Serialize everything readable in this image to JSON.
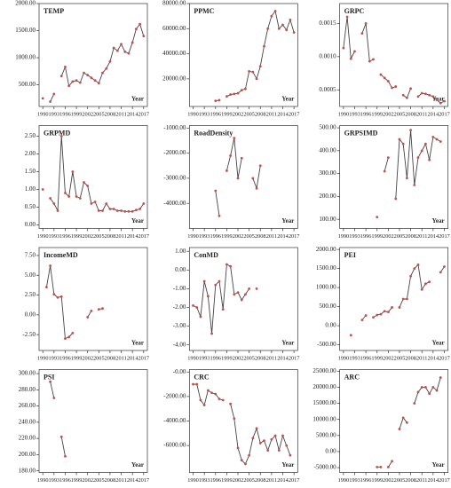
{
  "chart_data": [
    {
      "type": "line",
      "title": "TEMP",
      "x_label": "Year",
      "color": "#444",
      "marker_color": "#c0504d",
      "x": [
        1990,
        1991,
        1992,
        1993,
        1994,
        1995,
        1996,
        1997,
        1998,
        1999,
        2000,
        2001,
        2002,
        2003,
        2004,
        2005,
        2006,
        2007,
        2008,
        2009,
        2010,
        2011,
        2012,
        2013,
        2014,
        2015,
        2016,
        2017
      ],
      "xlim": [
        1989,
        2018
      ],
      "xticks": [
        1990,
        1993,
        1996,
        1999,
        2002,
        2005,
        2008,
        2011,
        2014,
        2017
      ],
      "ylim": [
        100,
        2000
      ],
      "yticks": [
        {
          "value": 500,
          "label": "500.00"
        },
        {
          "value": 1000,
          "label": "1000.00"
        },
        {
          "value": 1500,
          "label": "1500.00"
        },
        {
          "value": 2000,
          "label": "2000.00"
        }
      ],
      "values": [
        250,
        null,
        190,
        330,
        null,
        660,
        830,
        480,
        560,
        580,
        540,
        720,
        680,
        630,
        580,
        530,
        720,
        800,
        930,
        1180,
        1130,
        1250,
        1110,
        1080,
        1280,
        1530,
        1620,
        1400
      ]
    },
    {
      "type": "line",
      "title": "PPMC",
      "x_label": "Year",
      "color": "#444",
      "marker_color": "#c0504d",
      "x": [
        1990,
        1991,
        1992,
        1993,
        1994,
        1995,
        1996,
        1997,
        1998,
        1999,
        2000,
        2001,
        2002,
        2003,
        2004,
        2005,
        2006,
        2007,
        2008,
        2009,
        2010,
        2011,
        2012,
        2013,
        2014,
        2015,
        2016,
        2017
      ],
      "xlim": [
        1989,
        2018
      ],
      "xticks": [
        1990,
        1993,
        1996,
        1999,
        2002,
        2005,
        2008,
        2011,
        2014,
        2017
      ],
      "ylim": [
        -2000,
        80000
      ],
      "yticks": [
        {
          "value": 20000,
          "label": "20000.00"
        },
        {
          "value": 40000,
          "label": "40000.00"
        },
        {
          "value": 60000,
          "label": "60000.00"
        },
        {
          "value": 80000,
          "label": "80000.00"
        }
      ],
      "values": [
        null,
        null,
        null,
        null,
        null,
        null,
        2500,
        3000,
        null,
        6000,
        7500,
        8000,
        8500,
        11000,
        12000,
        26000,
        25500,
        20000,
        30000,
        46000,
        60000,
        70000,
        74000,
        60000,
        63000,
        59000,
        67000,
        57000
      ]
    },
    {
      "type": "line",
      "title": "GRPC",
      "x_label": "Year",
      "color": "#444",
      "marker_color": "#c0504d",
      "x": [
        1990,
        1991,
        1992,
        1993,
        1994,
        1995,
        1996,
        1997,
        1998,
        1999,
        2000,
        2001,
        2002,
        2003,
        2004,
        2005,
        2006,
        2007,
        2008,
        2009,
        2010,
        2011,
        2012,
        2013,
        2014,
        2015,
        2016,
        2017
      ],
      "xlim": [
        1989,
        2018
      ],
      "xticks": [
        1990,
        1993,
        1996,
        1999,
        2002,
        2005,
        2008,
        2011,
        2014,
        2017
      ],
      "ylim": [
        0.00025,
        0.0018
      ],
      "yticks": [
        {
          "value": 0.0005,
          "label": "0.0005"
        },
        {
          "value": 0.001,
          "label": "0.0010"
        },
        {
          "value": 0.0015,
          "label": "0.0015"
        }
      ],
      "values": [
        0.00113,
        0.0016,
        0.00097,
        0.00108,
        null,
        0.00135,
        0.0015,
        0.00093,
        0.00096,
        null,
        0.00073,
        0.00068,
        0.00063,
        0.00053,
        0.00055,
        null,
        0.00042,
        0.00038,
        0.00052,
        null,
        0.0004,
        0.00045,
        0.00044,
        0.00042,
        0.0004,
        0.00035,
        0.0003,
        0.00033
      ]
    },
    {
      "type": "line",
      "title": "GRPMD",
      "x_label": "Year",
      "color": "#444",
      "marker_color": "#c0504d",
      "x": [
        1990,
        1991,
        1992,
        1993,
        1994,
        1995,
        1996,
        1997,
        1998,
        1999,
        2000,
        2001,
        2002,
        2003,
        2004,
        2005,
        2006,
        2007,
        2008,
        2009,
        2010,
        2011,
        2012,
        2013,
        2014,
        2015,
        2016,
        2017
      ],
      "xlim": [
        1989,
        2018
      ],
      "xticks": [
        1990,
        1993,
        1996,
        1999,
        2002,
        2005,
        2008,
        2011,
        2014,
        2017
      ],
      "ylim": [
        -0.1,
        2.8
      ],
      "yticks": [
        {
          "value": 0,
          "label": "0.00"
        },
        {
          "value": 0.5,
          "label": "0.50"
        },
        {
          "value": 1,
          "label": "1.00"
        },
        {
          "value": 1.5,
          "label": "1.50"
        },
        {
          "value": 2,
          "label": "2.00"
        },
        {
          "value": 2.5,
          "label": "2.50"
        }
      ],
      "values": [
        1.0,
        null,
        0.75,
        0.6,
        0.4,
        2.5,
        0.9,
        0.8,
        1.5,
        0.8,
        0.75,
        1.2,
        1.1,
        0.6,
        0.65,
        0.4,
        0.4,
        0.6,
        0.45,
        0.45,
        0.4,
        0.4,
        0.38,
        0.38,
        0.38,
        0.42,
        0.45,
        0.6
      ]
    },
    {
      "type": "line",
      "title": "RoadDensity",
      "x_label": "Year",
      "color": "#444",
      "marker_color": "#c0504d",
      "x": [
        1990,
        1991,
        1992,
        1993,
        1994,
        1995,
        1996,
        1997,
        1998,
        1999,
        2000,
        2001,
        2002,
        2003,
        2004,
        2005,
        2006,
        2007,
        2008,
        2009,
        2010,
        2011,
        2012,
        2013,
        2014,
        2015,
        2016,
        2017
      ],
      "xlim": [
        1989,
        2018
      ],
      "xticks": [
        1990,
        1993,
        1996,
        1999,
        2002,
        2005,
        2008,
        2011,
        2014,
        2017
      ],
      "ylim": [
        -5000,
        -900
      ],
      "yticks": [
        {
          "value": -4000,
          "label": "-4000.00"
        },
        {
          "value": -3000,
          "label": "-3000.00"
        },
        {
          "value": -2000,
          "label": "-2000.00"
        },
        {
          "value": -1000,
          "label": "-1000.00"
        }
      ],
      "values": [
        null,
        null,
        null,
        null,
        null,
        null,
        -3500,
        -4500,
        null,
        -2700,
        -2100,
        -1400,
        -3000,
        -2200,
        null,
        null,
        -3000,
        -3400,
        -2500,
        null,
        null,
        null,
        null,
        null,
        null,
        null,
        null,
        null
      ]
    },
    {
      "type": "line",
      "title": "GRPSIMD",
      "x_label": "Year",
      "color": "#444",
      "marker_color": "#c0504d",
      "x": [
        1990,
        1991,
        1992,
        1993,
        1994,
        1995,
        1996,
        1997,
        1998,
        1999,
        2000,
        2001,
        2002,
        2003,
        2004,
        2005,
        2006,
        2007,
        2008,
        2009,
        2010,
        2011,
        2012,
        2013,
        2014,
        2015,
        2016,
        2017
      ],
      "xlim": [
        1989,
        2018
      ],
      "xticks": [
        1990,
        1993,
        1996,
        1999,
        2002,
        2005,
        2008,
        2011,
        2014,
        2017
      ],
      "ylim": [
        60,
        510
      ],
      "yticks": [
        {
          "value": 100,
          "label": "100.00"
        },
        {
          "value": 200,
          "label": "200.00"
        },
        {
          "value": 300,
          "label": "300.00"
        },
        {
          "value": 400,
          "label": "400.00"
        },
        {
          "value": 500,
          "label": "500.00"
        }
      ],
      "values": [
        null,
        null,
        null,
        null,
        null,
        null,
        null,
        null,
        null,
        110,
        null,
        310,
        370,
        null,
        190,
        450,
        430,
        280,
        490,
        250,
        370,
        400,
        430,
        360,
        460,
        450,
        440,
        null
      ]
    },
    {
      "type": "line",
      "title": "IncomeMD",
      "x_label": "Year",
      "color": "#444",
      "marker_color": "#c0504d",
      "x": [
        1990,
        1991,
        1992,
        1993,
        1994,
        1995,
        1996,
        1997,
        1998,
        1999,
        2000,
        2001,
        2002,
        2003,
        2004,
        2005,
        2006,
        2007,
        2008,
        2009,
        2010,
        2011,
        2012,
        2013,
        2014,
        2015,
        2016,
        2017
      ],
      "xlim": [
        1989,
        2018
      ],
      "xticks": [
        1990,
        1993,
        1996,
        1999,
        2002,
        2005,
        2008,
        2011,
        2014,
        2017
      ],
      "ylim": [
        -4.5,
        8.5
      ],
      "yticks": [
        {
          "value": -2.5,
          "label": "-2.50"
        },
        {
          "value": 0,
          "label": "0.00"
        },
        {
          "value": 2.5,
          "label": "2.50"
        },
        {
          "value": 5,
          "label": "5.00"
        },
        {
          "value": 7.5,
          "label": "7.50"
        }
      ],
      "values": [
        null,
        3.5,
        6.2,
        2.6,
        2.2,
        2.3,
        -3.0,
        -2.8,
        -2.3,
        null,
        null,
        null,
        -0.3,
        0.5,
        null,
        0.7,
        0.8,
        null,
        null,
        null,
        null,
        null,
        null,
        null,
        null,
        null,
        null,
        null
      ]
    },
    {
      "type": "line",
      "title": "ConMD",
      "x_label": "Year",
      "color": "#444",
      "marker_color": "#c0504d",
      "x": [
        1990,
        1991,
        1992,
        1993,
        1994,
        1995,
        1996,
        1997,
        1998,
        1999,
        2000,
        2001,
        2002,
        2003,
        2004,
        2005,
        2006,
        2007,
        2008,
        2009,
        2010,
        2011,
        2012,
        2013,
        2014,
        2015,
        2016,
        2017
      ],
      "xlim": [
        1989,
        2018
      ],
      "xticks": [
        1990,
        1993,
        1996,
        1999,
        2002,
        2005,
        2008,
        2011,
        2014,
        2017
      ],
      "ylim": [
        -4.3,
        1.2
      ],
      "yticks": [
        {
          "value": -4,
          "label": "-4.00"
        },
        {
          "value": -3,
          "label": "-3.00"
        },
        {
          "value": -2,
          "label": "-2.00"
        },
        {
          "value": -1,
          "label": "-1.00"
        },
        {
          "value": 0,
          "label": "0.00"
        },
        {
          "value": 1,
          "label": "1.00"
        }
      ],
      "values": [
        -1.9,
        -2.0,
        -2.5,
        -0.6,
        -1.4,
        -3.4,
        -0.8,
        -0.6,
        -2.1,
        0.3,
        0.2,
        -1.3,
        -1.2,
        -1.6,
        -1.3,
        -1.0,
        null,
        -1.0,
        null,
        null,
        null,
        null,
        null,
        null,
        null,
        null,
        null,
        null
      ]
    },
    {
      "type": "line",
      "title": "PEI",
      "x_label": "Year",
      "color": "#444",
      "marker_color": "#c0504d",
      "x": [
        1990,
        1991,
        1992,
        1993,
        1994,
        1995,
        1996,
        1997,
        1998,
        1999,
        2000,
        2001,
        2002,
        2003,
        2004,
        2005,
        2006,
        2007,
        2008,
        2009,
        2010,
        2011,
        2012,
        2013,
        2014,
        2015,
        2016,
        2017
      ],
      "xlim": [
        1989,
        2018
      ],
      "xticks": [
        1990,
        1993,
        1996,
        1999,
        2002,
        2005,
        2008,
        2011,
        2014,
        2017
      ],
      "ylim": [
        -650,
        2050
      ],
      "yticks": [
        {
          "value": -500,
          "label": "-500.00"
        },
        {
          "value": 0,
          "label": "0.00"
        },
        {
          "value": 500,
          "label": "500.00"
        },
        {
          "value": 1000,
          "label": "1000.00"
        },
        {
          "value": 1500,
          "label": "1500.00"
        },
        {
          "value": 2000,
          "label": "2000.00"
        }
      ],
      "values": [
        null,
        null,
        -250,
        null,
        null,
        150,
        270,
        null,
        220,
        280,
        300,
        380,
        360,
        480,
        null,
        480,
        700,
        700,
        1300,
        1500,
        1600,
        950,
        1100,
        1150,
        null,
        null,
        1400,
        1550
      ]
    },
    {
      "type": "line",
      "title": "PSI",
      "x_label": "Year",
      "color": "#444",
      "marker_color": "#c0504d",
      "x": [
        1990,
        1991,
        1992,
        1993,
        1994,
        1995,
        1996,
        1997,
        1998,
        1999,
        2000,
        2001,
        2002,
        2003,
        2004,
        2005,
        2006,
        2007,
        2008,
        2009,
        2010,
        2011,
        2012,
        2013,
        2014,
        2015,
        2016,
        2017
      ],
      "xlim": [
        1989,
        2018
      ],
      "xticks": [
        1990,
        1993,
        1996,
        1999,
        2002,
        2005,
        2008,
        2011,
        2014,
        2017
      ],
      "ylim": [
        178,
        305
      ],
      "yticks": [
        {
          "value": 180,
          "label": "180.00"
        },
        {
          "value": 200,
          "label": "200.00"
        },
        {
          "value": 220,
          "label": "220.00"
        },
        {
          "value": 240,
          "label": "240.00"
        },
        {
          "value": 260,
          "label": "260.00"
        },
        {
          "value": 280,
          "label": "280.00"
        },
        {
          "value": 300,
          "label": "300.00"
        }
      ],
      "values": [
        null,
        null,
        290,
        270,
        null,
        222,
        198,
        null,
        null,
        null,
        null,
        null,
        null,
        null,
        null,
        null,
        null,
        null,
        null,
        null,
        null,
        null,
        null,
        null,
        null,
        null,
        null,
        null
      ]
    },
    {
      "type": "line",
      "title": "CRC",
      "x_label": "Year",
      "color": "#444",
      "marker_color": "#c0504d",
      "x": [
        1990,
        1991,
        1992,
        1993,
        1994,
        1995,
        1996,
        1997,
        1998,
        1999,
        2000,
        2001,
        2002,
        2003,
        2004,
        2005,
        2006,
        2007,
        2008,
        2009,
        2010,
        2011,
        2012,
        2013,
        2014,
        2015,
        2016,
        2017
      ],
      "xlim": [
        1989,
        2018
      ],
      "xticks": [
        1990,
        1993,
        1996,
        1999,
        2002,
        2005,
        2008,
        2011,
        2014,
        2017
      ],
      "ylim": [
        -8200,
        200
      ],
      "yticks": [
        {
          "value": -6000,
          "label": "-6000.00"
        },
        {
          "value": -4000,
          "label": "-4000.00"
        },
        {
          "value": -2000,
          "label": "-2000.00"
        },
        {
          "value": 0,
          "label": "-0.00"
        }
      ],
      "values": [
        -1000,
        -1000,
        -2300,
        -2700,
        -1500,
        -1700,
        -1800,
        -2200,
        -2300,
        null,
        -2600,
        -3800,
        -6200,
        -7200,
        -7500,
        -6800,
        -5400,
        -4600,
        -5800,
        -5600,
        -6400,
        -5500,
        -5200,
        -6400,
        -5200,
        -6000,
        -6800,
        null
      ]
    },
    {
      "type": "line",
      "title": "ARC",
      "x_label": "Year",
      "color": "#444",
      "marker_color": "#c0504d",
      "x": [
        1990,
        1991,
        1992,
        1993,
        1994,
        1995,
        1996,
        1997,
        1998,
        1999,
        2000,
        2001,
        2002,
        2003,
        2004,
        2005,
        2006,
        2007,
        2008,
        2009,
        2010,
        2011,
        2012,
        2013,
        2014,
        2015,
        2016,
        2017
      ],
      "xlim": [
        1989,
        2018
      ],
      "xticks": [
        1990,
        1993,
        1996,
        1999,
        2002,
        2005,
        2008,
        2011,
        2014,
        2017
      ],
      "ylim": [
        -6500,
        25500
      ],
      "yticks": [
        {
          "value": -5000,
          "label": "-5000.00"
        },
        {
          "value": 0,
          "label": "0.00"
        },
        {
          "value": 5000,
          "label": "5000.00"
        },
        {
          "value": 10000,
          "label": "10000.00"
        },
        {
          "value": 15000,
          "label": "15000.00"
        },
        {
          "value": 20000,
          "label": "20000.00"
        },
        {
          "value": 25000,
          "label": "25000.00"
        }
      ],
      "values": [
        null,
        null,
        null,
        null,
        null,
        null,
        null,
        null,
        null,
        -4800,
        -4800,
        null,
        -4800,
        -3000,
        null,
        7000,
        10500,
        9000,
        null,
        15000,
        18500,
        20000,
        20000,
        18000,
        20000,
        19000,
        23000,
        null
      ]
    }
  ]
}
